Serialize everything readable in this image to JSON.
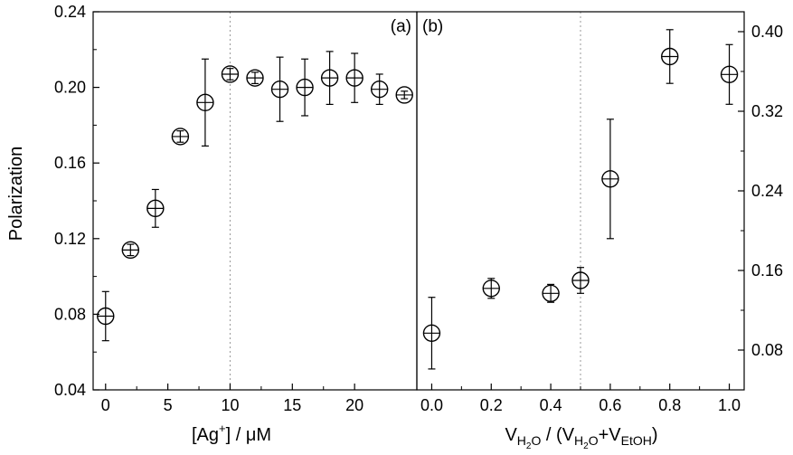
{
  "chart_data": [
    {
      "panel_label": "(a)",
      "type": "scatter",
      "ylabel": "Polarization",
      "xlabel": {
        "pre": "[Ag",
        "sup": "+",
        "post": "] / μM"
      },
      "xlim": [
        -1,
        25
      ],
      "ylim": [
        0.04,
        0.24
      ],
      "xticks": [
        "0",
        "5",
        "10",
        "15",
        "20"
      ],
      "yticks": [
        "0.04",
        "0.08",
        "0.12",
        "0.16",
        "0.20",
        "0.24"
      ],
      "reference_line_x": 10,
      "points": [
        {
          "x": 0,
          "y": 0.079,
          "err": 0.013
        },
        {
          "x": 2,
          "y": 0.114,
          "err": 0.003
        },
        {
          "x": 4,
          "y": 0.136,
          "err": 0.01
        },
        {
          "x": 6,
          "y": 0.174,
          "err": 0.003
        },
        {
          "x": 8,
          "y": 0.192,
          "err": 0.023
        },
        {
          "x": 10,
          "y": 0.207,
          "err": 0.003
        },
        {
          "x": 12,
          "y": 0.205,
          "err": 0.003
        },
        {
          "x": 14,
          "y": 0.199,
          "err": 0.017
        },
        {
          "x": 16,
          "y": 0.2,
          "err": 0.015
        },
        {
          "x": 18,
          "y": 0.205,
          "err": 0.014
        },
        {
          "x": 20,
          "y": 0.205,
          "err": 0.013
        },
        {
          "x": 22,
          "y": 0.199,
          "err": 0.008
        },
        {
          "x": 24,
          "y": 0.196,
          "err": 0.002
        }
      ]
    },
    {
      "panel_label": "(b)",
      "type": "scatter",
      "xlabel": {
        "main": "V",
        "sub1": "H",
        "sub1b": "2",
        "sub1c": "O",
        "mid": " / (V",
        "sub2": "H",
        "sub2b": "2",
        "sub2c": "O",
        "plus": "+V",
        "sub3": "EtOH",
        "close": ")"
      },
      "xlim": [
        -0.05,
        1.05
      ],
      "ylim": [
        0.04,
        0.42
      ],
      "xticks": [
        "0.0",
        "0.2",
        "0.4",
        "0.6",
        "0.8",
        "1.0"
      ],
      "yticks": [
        "0.08",
        "0.16",
        "0.24",
        "0.32",
        "0.40"
      ],
      "reference_line_x": 0.5,
      "points": [
        {
          "x": 0.0,
          "y": 0.097,
          "err": 0.036
        },
        {
          "x": 0.2,
          "y": 0.142,
          "err": 0.01
        },
        {
          "x": 0.4,
          "y": 0.137,
          "err": 0.009
        },
        {
          "x": 0.5,
          "y": 0.15,
          "err": 0.013
        },
        {
          "x": 0.6,
          "y": 0.252,
          "err": 0.06
        },
        {
          "x": 0.8,
          "y": 0.375,
          "err": 0.027
        },
        {
          "x": 1.0,
          "y": 0.357,
          "err": 0.03
        }
      ]
    }
  ]
}
